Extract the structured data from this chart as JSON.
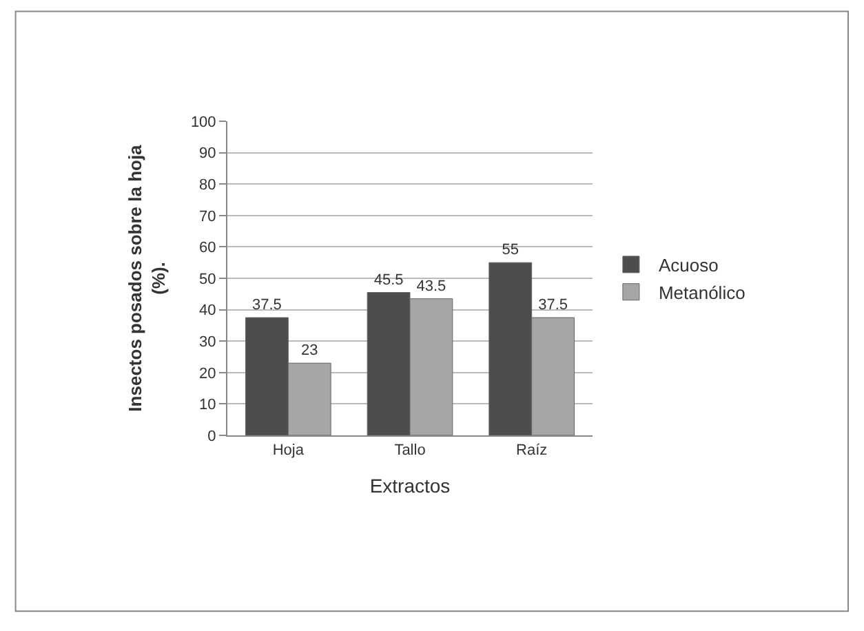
{
  "chart_data": {
    "type": "bar",
    "xlabel": "Extractos",
    "ylabel": "Insectos posados sobre la hoja (%).",
    "categories": [
      "Hoja",
      "Tallo",
      "Raíz"
    ],
    "series": [
      {
        "name": "Acuoso",
        "color": "#4d4d4d",
        "values": [
          37.5,
          45.5,
          55
        ]
      },
      {
        "name": "Metanólico",
        "color": "#a6a6a6",
        "values": [
          23,
          43.5,
          37.5
        ]
      }
    ],
    "ylim": [
      0,
      100
    ],
    "yticks": [
      0,
      10,
      20,
      30,
      40,
      50,
      60,
      70,
      80,
      90,
      100
    ],
    "grid": "y",
    "legend": "right",
    "data_labels": true
  }
}
